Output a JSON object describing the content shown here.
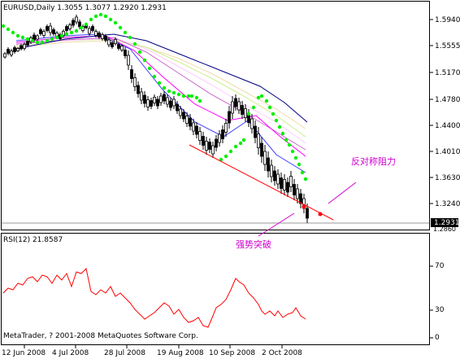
{
  "main_chart": {
    "header": "EURUSD,Daily  1.3055 1.3077 1.2920 1.2931",
    "price_ticks": [
      "1.5940",
      "1.5555",
      "1.5170",
      "1.4780",
      "1.4400",
      "1.4010",
      "1.3630",
      "1.3240"
    ],
    "current_price": "1.2931",
    "bottom_tick": "1.2860",
    "annotation_resistance": "反对称阻力",
    "annotation_breakout": "强势突破"
  },
  "rsi": {
    "header": "RSI(12) 21.8587",
    "ticks": [
      "70",
      "30",
      "0"
    ],
    "copyright": "MetaTrader, ? 2001-2008 MetaQuotes Software Corp."
  },
  "time_axis": [
    "12 Jun 2008",
    "4 Jul 2008",
    "28 Jul 2008",
    "19 Aug 2008",
    "10 Sep 2008",
    "2 Oct 2008"
  ],
  "colors": {
    "candles": "#000000",
    "sar_dots": "#00ee00",
    "trendline": "#ff0000",
    "rsi_line": "#ff0000",
    "annotation": "#d000d0",
    "ma_colors": [
      "#000080",
      "#4040ff",
      "#ff00ff",
      "#cc66cc",
      "#ffccff",
      "#ccee88",
      "#eeddaa"
    ]
  }
}
